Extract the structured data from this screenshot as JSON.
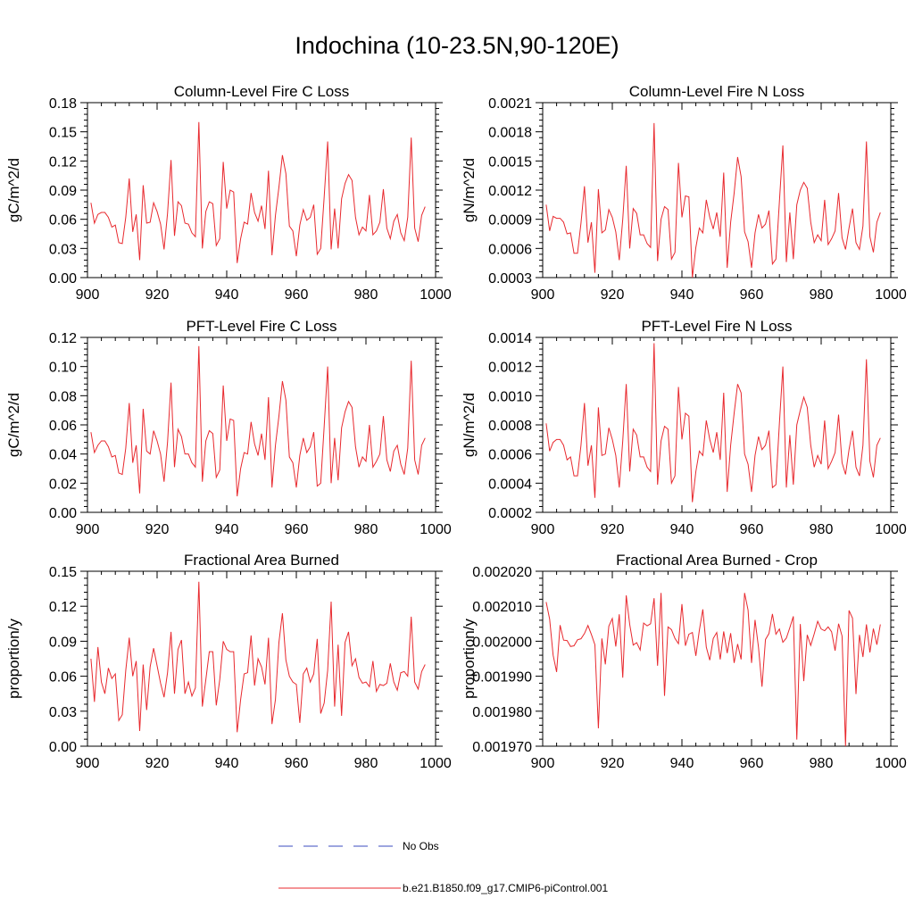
{
  "page": {
    "title": "Indochina (10-23.5N,90-120E)"
  },
  "legend": {
    "items": [
      {
        "label": "No Obs",
        "color": "#3b4bbf",
        "style": "dashed"
      },
      {
        "label": "b.e21.B1850.f09_g17.CMIP6-piControl.001",
        "color": "#e8292e",
        "style": "solid"
      }
    ]
  },
  "chart_data": [
    {
      "type": "line",
      "title": "Column-Level Fire C Loss",
      "xlabel": "",
      "ylabel": "gC/m^2/d",
      "xlim": [
        900,
        1000
      ],
      "ylim": [
        0,
        0.18
      ],
      "xticks": [
        900,
        920,
        940,
        960,
        980,
        1000
      ],
      "xtick_labels": [
        "900",
        "920",
        "940",
        "960",
        "980",
        "1000"
      ],
      "yticks": [
        0,
        0.03,
        0.06,
        0.09,
        0.12,
        0.15,
        0.18
      ],
      "ytick_labels": [
        "0.00",
        "0.03",
        "0.06",
        "0.09",
        "0.12",
        "0.15",
        "0.18"
      ],
      "series": [
        {
          "name": "b.e21.B1850.f09_g17.CMIP6-piControl.001",
          "color": "#e8292e",
          "x0": 901,
          "values": [
            0.077,
            0.056,
            0.065,
            0.067,
            0.067,
            0.062,
            0.052,
            0.054,
            0.036,
            0.035,
            0.062,
            0.102,
            0.047,
            0.065,
            0.018,
            0.095,
            0.056,
            0.057,
            0.077,
            0.068,
            0.055,
            0.029,
            0.066,
            0.121,
            0.043,
            0.078,
            0.074,
            0.056,
            0.055,
            0.046,
            0.042,
            0.16,
            0.03,
            0.068,
            0.078,
            0.076,
            0.033,
            0.04,
            0.119,
            0.071,
            0.09,
            0.088,
            0.015,
            0.04,
            0.057,
            0.055,
            0.087,
            0.067,
            0.058,
            0.074,
            0.05,
            0.11,
            0.023,
            0.064,
            0.093,
            0.126,
            0.107,
            0.053,
            0.048,
            0.022,
            0.054,
            0.07,
            0.059,
            0.062,
            0.075,
            0.024,
            0.03,
            0.083,
            0.14,
            0.029,
            0.071,
            0.03,
            0.081,
            0.097,
            0.106,
            0.1,
            0.062,
            0.044,
            0.052,
            0.048,
            0.085,
            0.044,
            0.048,
            0.057,
            0.091,
            0.051,
            0.04,
            0.058,
            0.065,
            0.046,
            0.038,
            0.062,
            0.144,
            0.051,
            0.037,
            0.064,
            0.073
          ]
        }
      ]
    },
    {
      "type": "line",
      "title": "Column-Level Fire N Loss",
      "xlabel": "",
      "ylabel": "gN/m^2/d",
      "xlim": [
        900,
        1000
      ],
      "ylim": [
        0.0003,
        0.0021
      ],
      "xticks": [
        900,
        920,
        940,
        960,
        980,
        1000
      ],
      "xtick_labels": [
        "900",
        "920",
        "940",
        "960",
        "980",
        "1000"
      ],
      "yticks": [
        0.0003,
        0.0006,
        0.0009,
        0.0012,
        0.0015,
        0.0018,
        0.0021
      ],
      "ytick_labels": [
        "0.0003",
        "0.0006",
        "0.0009",
        "0.0012",
        "0.0015",
        "0.0018",
        "0.0021"
      ],
      "series": [
        {
          "name": "b.e21.B1850.f09_g17.CMIP6-piControl.001",
          "color": "#e8292e",
          "x0": 901,
          "values": [
            0.00105,
            0.00078,
            0.00093,
            0.00091,
            0.00091,
            0.00087,
            0.00075,
            0.00076,
            0.00055,
            0.00055,
            0.00086,
            0.00124,
            0.00066,
            0.00087,
            0.00035,
            0.00121,
            0.00076,
            0.00079,
            0.001,
            0.00092,
            0.00077,
            0.00048,
            0.0009,
            0.00145,
            0.0006,
            0.00101,
            0.00096,
            0.00074,
            0.00074,
            0.00065,
            0.00061,
            0.00189,
            0.00047,
            0.0009,
            0.00103,
            0.001,
            0.00049,
            0.00056,
            0.00148,
            0.00092,
            0.00114,
            0.00113,
            0.0003,
            0.00061,
            0.00081,
            0.00076,
            0.0011,
            0.00092,
            0.0008,
            0.00097,
            0.00072,
            0.00138,
            0.0004,
            0.00087,
            0.00117,
            0.00154,
            0.00134,
            0.00077,
            0.00067,
            0.0004,
            0.00076,
            0.00095,
            0.00081,
            0.00085,
            0.00099,
            0.00044,
            0.00049,
            0.00108,
            0.00166,
            0.00046,
            0.00097,
            0.00049,
            0.00105,
            0.0012,
            0.00128,
            0.00122,
            0.00087,
            0.00066,
            0.00074,
            0.00068,
            0.0011,
            0.00064,
            0.0007,
            0.00078,
            0.00117,
            0.00071,
            0.00059,
            0.00081,
            0.00101,
            0.00066,
            0.00059,
            0.00083,
            0.0017,
            0.00072,
            0.00056,
            0.00087,
            0.00097
          ]
        }
      ]
    },
    {
      "type": "line",
      "title": "PFT-Level Fire C Loss",
      "xlabel": "",
      "ylabel": "gC/m^2/d",
      "xlim": [
        900,
        1000
      ],
      "ylim": [
        0,
        0.12
      ],
      "xticks": [
        900,
        920,
        940,
        960,
        980,
        1000
      ],
      "xtick_labels": [
        "900",
        "920",
        "940",
        "960",
        "980",
        "1000"
      ],
      "yticks": [
        0,
        0.02,
        0.04,
        0.06,
        0.08,
        0.1,
        0.12
      ],
      "ytick_labels": [
        "0.00",
        "0.02",
        "0.04",
        "0.06",
        "0.08",
        "0.10",
        "0.12"
      ],
      "series": [
        {
          "name": "b.e21.B1850.f09_g17.CMIP6-piControl.001",
          "color": "#e8292e",
          "x0": 901,
          "values": [
            0.055,
            0.041,
            0.046,
            0.049,
            0.049,
            0.045,
            0.038,
            0.039,
            0.027,
            0.026,
            0.044,
            0.075,
            0.034,
            0.046,
            0.013,
            0.071,
            0.042,
            0.04,
            0.056,
            0.049,
            0.04,
            0.021,
            0.048,
            0.089,
            0.031,
            0.057,
            0.052,
            0.04,
            0.04,
            0.034,
            0.031,
            0.114,
            0.021,
            0.049,
            0.056,
            0.054,
            0.024,
            0.029,
            0.087,
            0.049,
            0.064,
            0.063,
            0.011,
            0.03,
            0.041,
            0.04,
            0.062,
            0.047,
            0.039,
            0.054,
            0.036,
            0.079,
            0.017,
            0.046,
            0.066,
            0.09,
            0.077,
            0.038,
            0.034,
            0.017,
            0.039,
            0.051,
            0.041,
            0.045,
            0.055,
            0.018,
            0.02,
            0.059,
            0.1,
            0.02,
            0.051,
            0.022,
            0.058,
            0.069,
            0.076,
            0.072,
            0.045,
            0.031,
            0.038,
            0.035,
            0.06,
            0.031,
            0.035,
            0.04,
            0.066,
            0.036,
            0.028,
            0.042,
            0.046,
            0.033,
            0.026,
            0.044,
            0.104,
            0.036,
            0.026,
            0.046,
            0.051
          ]
        }
      ]
    },
    {
      "type": "line",
      "title": "PFT-Level Fire N Loss",
      "xlabel": "",
      "ylabel": "gN/m^2/d",
      "xlim": [
        900,
        1000
      ],
      "ylim": [
        0.0002,
        0.0014
      ],
      "xticks": [
        900,
        920,
        940,
        960,
        980,
        1000
      ],
      "xtick_labels": [
        "900",
        "920",
        "940",
        "960",
        "980",
        "1000"
      ],
      "yticks": [
        0.0002,
        0.0004,
        0.0006,
        0.0008,
        0.001,
        0.0012,
        0.0014
      ],
      "ytick_labels": [
        "0.0002",
        "0.0004",
        "0.0006",
        "0.0008",
        "0.0010",
        "0.0012",
        "0.0014"
      ],
      "series": [
        {
          "name": "b.e21.B1850.f09_g17.CMIP6-piControl.001",
          "color": "#e8292e",
          "x0": 901,
          "values": [
            0.00081,
            0.00062,
            0.00068,
            0.0007,
            0.0007,
            0.00066,
            0.00056,
            0.00058,
            0.00045,
            0.00045,
            0.00066,
            0.00095,
            0.00052,
            0.00066,
            0.0003,
            0.00092,
            0.00059,
            0.0006,
            0.00078,
            0.0007,
            0.00059,
            0.00037,
            0.00069,
            0.00108,
            0.00048,
            0.00077,
            0.00073,
            0.00058,
            0.00058,
            0.00051,
            0.00048,
            0.00136,
            0.00039,
            0.00069,
            0.00079,
            0.00077,
            0.0004,
            0.00045,
            0.00106,
            0.0007,
            0.00088,
            0.00086,
            0.00027,
            0.00048,
            0.00062,
            0.00059,
            0.00083,
            0.0007,
            0.00061,
            0.00075,
            0.00056,
            0.00102,
            0.00034,
            0.00066,
            0.00088,
            0.00108,
            0.00102,
            0.0006,
            0.00053,
            0.00034,
            0.00059,
            0.00072,
            0.00063,
            0.00066,
            0.00076,
            0.00037,
            0.00039,
            0.00081,
            0.0012,
            0.00037,
            0.00073,
            0.00039,
            0.0008,
            0.0009,
            0.00099,
            0.00092,
            0.00066,
            0.00051,
            0.00059,
            0.00053,
            0.00083,
            0.0005,
            0.00055,
            0.00061,
            0.00087,
            0.00054,
            0.00046,
            0.00063,
            0.00076,
            0.00051,
            0.00045,
            0.00066,
            0.00125,
            0.00055,
            0.00044,
            0.00066,
            0.00071
          ]
        }
      ]
    },
    {
      "type": "line",
      "title": "Fractional Area Burned",
      "xlabel": "",
      "ylabel": "proportion/y",
      "xlim": [
        900,
        1000
      ],
      "ylim": [
        0,
        0.15
      ],
      "xticks": [
        900,
        920,
        940,
        960,
        980,
        1000
      ],
      "xtick_labels": [
        "900",
        "920",
        "940",
        "960",
        "980",
        "1000"
      ],
      "yticks": [
        0,
        0.03,
        0.06,
        0.09,
        0.12,
        0.15
      ],
      "ytick_labels": [
        "0.00",
        "0.03",
        "0.06",
        "0.09",
        "0.12",
        "0.15"
      ],
      "series": [
        {
          "name": "b.e21.B1850.f09_g17.CMIP6-piControl.001",
          "color": "#e8292e",
          "x0": 901,
          "values": [
            0.075,
            0.038,
            0.085,
            0.055,
            0.045,
            0.067,
            0.058,
            0.062,
            0.022,
            0.027,
            0.065,
            0.093,
            0.06,
            0.073,
            0.013,
            0.07,
            0.031,
            0.068,
            0.084,
            0.069,
            0.054,
            0.042,
            0.063,
            0.098,
            0.045,
            0.083,
            0.091,
            0.045,
            0.055,
            0.043,
            0.05,
            0.141,
            0.034,
            0.057,
            0.081,
            0.081,
            0.035,
            0.057,
            0.09,
            0.083,
            0.081,
            0.081,
            0.012,
            0.04,
            0.062,
            0.063,
            0.095,
            0.052,
            0.075,
            0.068,
            0.053,
            0.093,
            0.019,
            0.04,
            0.089,
            0.114,
            0.074,
            0.06,
            0.055,
            0.053,
            0.02,
            0.062,
            0.067,
            0.055,
            0.062,
            0.092,
            0.028,
            0.037,
            0.065,
            0.124,
            0.034,
            0.087,
            0.026,
            0.089,
            0.098,
            0.069,
            0.075,
            0.059,
            0.054,
            0.055,
            0.051,
            0.073,
            0.047,
            0.053,
            0.052,
            0.054,
            0.071,
            0.055,
            0.048,
            0.063,
            0.064,
            0.06,
            0.111,
            0.055,
            0.049,
            0.064,
            0.07
          ]
        }
      ]
    },
    {
      "type": "line",
      "title": "Fractional Area Burned - Crop",
      "xlabel": "",
      "ylabel": "proportion/y",
      "xlim": [
        900,
        1000
      ],
      "ylim": [
        0.00197,
        0.00202
      ],
      "xticks": [
        900,
        920,
        940,
        960,
        980,
        1000
      ],
      "xtick_labels": [
        "900",
        "920",
        "940",
        "960",
        "980",
        "1000"
      ],
      "yticks": [
        0.00197,
        0.00198,
        0.00199,
        0.002,
        0.00201,
        0.00202
      ],
      "ytick_labels": [
        "0.001970",
        "0.001980",
        "0.001990",
        "0.002000",
        "0.002010",
        "0.002020"
      ],
      "series": [
        {
          "name": "b.e21.B1850.f09_g17.CMIP6-piControl.001",
          "color": "#e8292e",
          "x0": 901,
          "values": [
            0.0020112,
            0.0020063,
            0.001996,
            0.0019912,
            0.0020046,
            0.0020003,
            0.0020002,
            0.0019985,
            0.0019987,
            0.0020004,
            0.0020007,
            0.0020022,
            0.0020045,
            0.0020019,
            0.001999,
            0.0019751,
            0.0020008,
            0.0019934,
            0.0020043,
            0.0020065,
            0.0019985,
            0.0020077,
            0.0019896,
            0.0020131,
            0.0020048,
            0.0019989,
            0.0019996,
            0.0019975,
            0.0020052,
            0.0020044,
            0.002005,
            0.0020123,
            0.001993,
            0.0020138,
            0.0019844,
            0.0020041,
            0.0020033,
            0.0020008,
            0.0019993,
            0.0020106,
            0.0019987,
            0.002002,
            0.0020025,
            0.0019958,
            0.0020031,
            0.0020091,
            0.0019983,
            0.0019946,
            0.0020008,
            0.0020025,
            0.0019948,
            0.0020028,
            0.0019966,
            0.0020023,
            0.0019938,
            0.0019992,
            0.0019948,
            0.0020138,
            0.0020089,
            0.0019938,
            0.0020061,
            0.0019982,
            0.001987,
            0.0020005,
            0.0020022,
            0.0020078,
            0.002002,
            0.0020035,
            0.0019997,
            0.0020009,
            0.0020039,
            0.0020071,
            0.0019719,
            0.0020049,
            0.0019886,
            0.0020018,
            0.0019988,
            0.0020021,
            0.0020057,
            0.0020035,
            0.002003,
            0.0020041,
            0.0020027,
            0.0019973,
            0.002005,
            0.0020015,
            0.00197,
            0.0020088,
            0.0020066,
            0.0019849,
            0.0020018,
            0.0019955,
            0.0020048,
            0.0019968,
            0.0020036,
            0.001999,
            0.0020048
          ]
        }
      ]
    }
  ]
}
